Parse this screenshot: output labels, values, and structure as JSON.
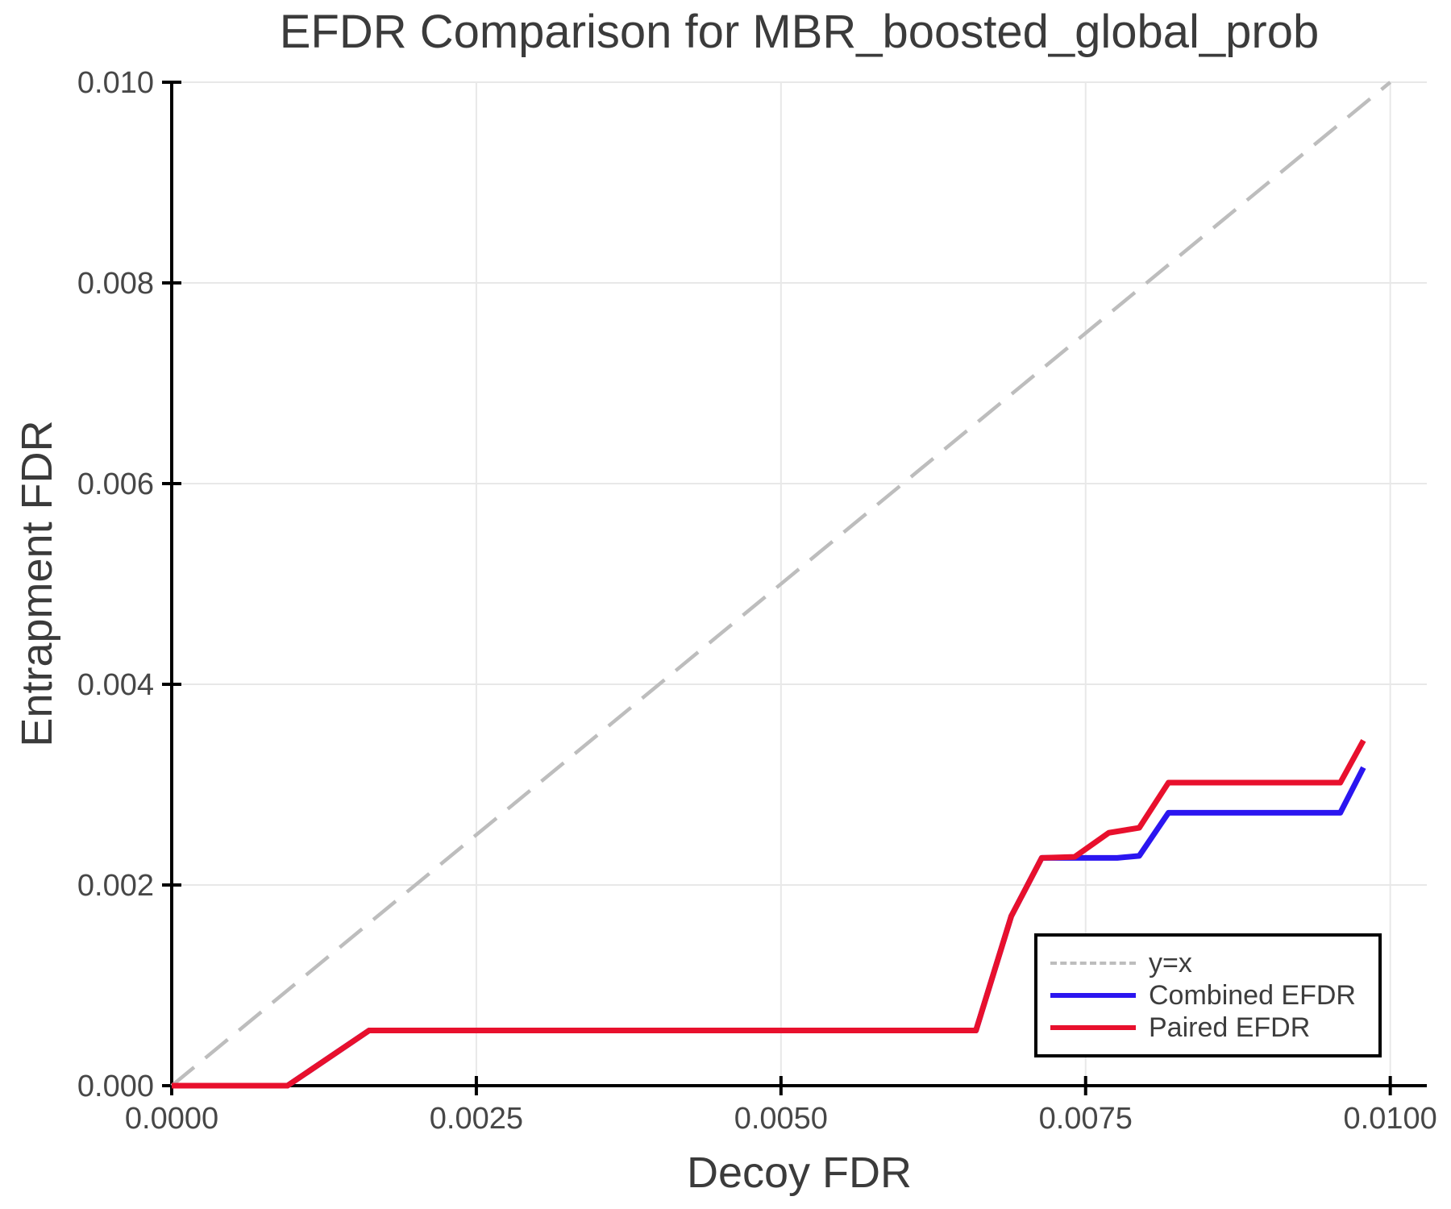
{
  "chart_data": {
    "type": "line",
    "title": "EFDR Comparison for MBR_boosted_global_prob",
    "xlabel": "Decoy FDR",
    "ylabel": "Entrapment FDR",
    "xlim": [
      0.0,
      0.0103
    ],
    "ylim": [
      0.0,
      0.01
    ],
    "x_ticks": [
      0.0,
      0.0025,
      0.005,
      0.0075,
      0.01
    ],
    "x_tick_labels": [
      "0.0000",
      "0.0025",
      "0.0050",
      "0.0075",
      "0.0100"
    ],
    "y_ticks": [
      0.0,
      0.002,
      0.004,
      0.006,
      0.008,
      0.01
    ],
    "y_tick_labels": [
      "0.000",
      "0.002",
      "0.004",
      "0.006",
      "0.008",
      "0.010"
    ],
    "grid": true,
    "grid_color": "#e8e8e8",
    "axis_color": "#000000",
    "text_color": "#3d3d3d",
    "legend_position": "inside lower-right",
    "series": [
      {
        "name": "y=x",
        "color": "#bdbdbd",
        "style": "dashed",
        "width": 4.5,
        "x": [
          0.0,
          0.01
        ],
        "y": [
          0.0,
          0.01
        ]
      },
      {
        "name": "Combined EFDR",
        "color": "#2B16F0",
        "style": "solid",
        "width": 7,
        "x": [
          0.0,
          0.00095,
          0.00162,
          0.0066,
          0.00689,
          0.00714,
          0.00776,
          0.00794,
          0.00818,
          0.00959,
          0.00978
        ],
        "y": [
          0.0,
          0.0,
          0.00055,
          0.00055,
          0.00169,
          0.00227,
          0.00227,
          0.00229,
          0.00272,
          0.00272,
          0.00317
        ]
      },
      {
        "name": "Paired EFDR",
        "color": "#E8102D",
        "style": "solid",
        "width": 7,
        "x": [
          0.0,
          0.00095,
          0.00162,
          0.0066,
          0.00689,
          0.00714,
          0.00741,
          0.00769,
          0.00794,
          0.00818,
          0.00959,
          0.00978
        ],
        "y": [
          0.0,
          0.0,
          0.00055,
          0.00055,
          0.00169,
          0.00227,
          0.00228,
          0.00252,
          0.00257,
          0.00302,
          0.00302,
          0.00344
        ]
      }
    ]
  }
}
